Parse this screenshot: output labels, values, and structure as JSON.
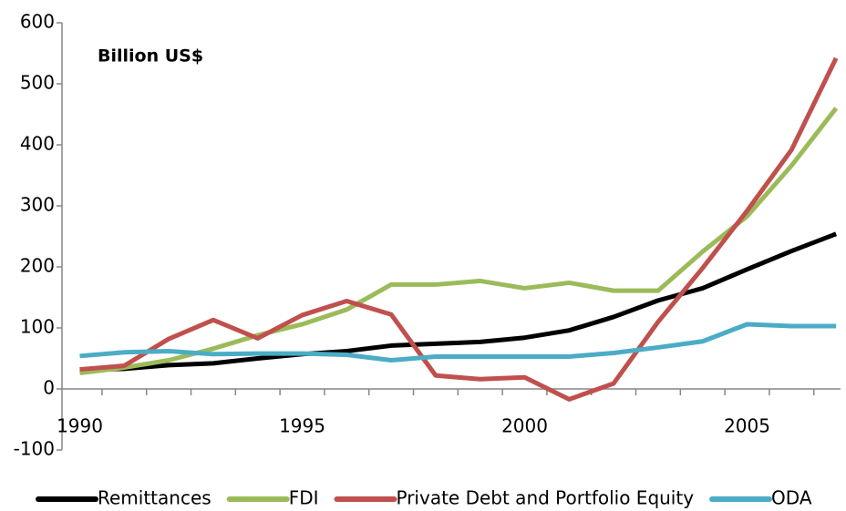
{
  "chart_data": {
    "type": "line",
    "annotation": "Billion US$",
    "x": [
      1990,
      1991,
      1992,
      1993,
      1994,
      1995,
      1996,
      1997,
      1998,
      1999,
      2000,
      2001,
      2002,
      2003,
      2004,
      2005,
      2006,
      2007
    ],
    "xlim": [
      1989.6,
      2007.1
    ],
    "xticks": [
      1990,
      1995,
      2000,
      2005
    ],
    "ylim": [
      -100,
      600
    ],
    "yticks": [
      -100,
      0,
      100,
      200,
      300,
      400,
      500,
      600
    ],
    "grid": false,
    "legend": "bottom",
    "series": [
      {
        "name": "Remittances",
        "color": "#000000",
        "values": [
          31,
          33,
          39,
          42,
          50,
          57,
          62,
          71,
          74,
          77,
          84,
          96,
          118,
          145,
          165,
          196,
          226,
          254
        ]
      },
      {
        "name": "FDI",
        "color": "#9bbb59",
        "values": [
          26,
          35,
          47,
          66,
          88,
          106,
          130,
          171,
          171,
          177,
          165,
          174,
          161,
          161,
          225,
          283,
          366,
          460
        ]
      },
      {
        "name": "Private Debt and Portfolio Equity",
        "color": "#c0504d",
        "values": [
          32,
          38,
          82,
          113,
          83,
          121,
          144,
          122,
          22,
          16,
          19,
          -17,
          9,
          110,
          198,
          292,
          392,
          542
        ]
      },
      {
        "name": "ODA",
        "color": "#4bacc6",
        "values": [
          54,
          60,
          62,
          57,
          58,
          58,
          56,
          47,
          53,
          53,
          53,
          53,
          59,
          68,
          78,
          106,
          103,
          103
        ]
      }
    ]
  }
}
